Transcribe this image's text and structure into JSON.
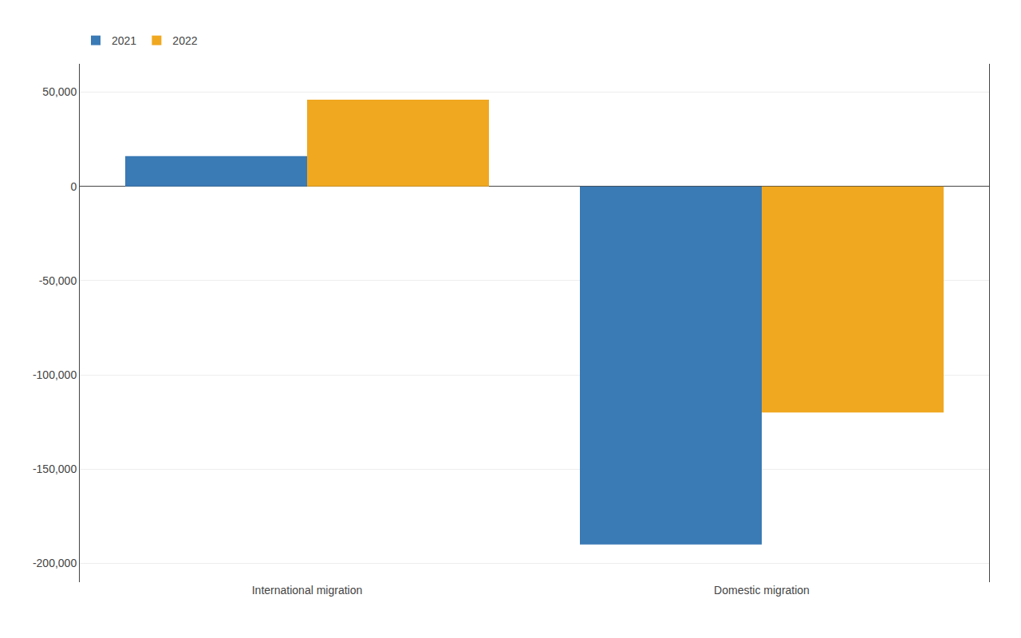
{
  "chart_data": {
    "type": "bar",
    "categories": [
      "International migration",
      "Domestic migration"
    ],
    "series": [
      {
        "name": "2021",
        "color": "#3a7ab5",
        "values": [
          16000,
          -190000
        ]
      },
      {
        "name": "2022",
        "color": "#f0a820",
        "values": [
          46000,
          -120000
        ]
      }
    ],
    "ylim": [
      -210000,
      65000
    ],
    "yticks": [
      {
        "value": 50000,
        "label": "50,000"
      },
      0,
      {
        "value": -50000,
        "label": "-50,000"
      },
      {
        "value": -100000,
        "label": "-100,000"
      },
      {
        "value": -150000,
        "label": "-150,000"
      },
      {
        "value": -200000,
        "label": "-200,000"
      }
    ],
    "grid": true,
    "legend": "upper left"
  }
}
